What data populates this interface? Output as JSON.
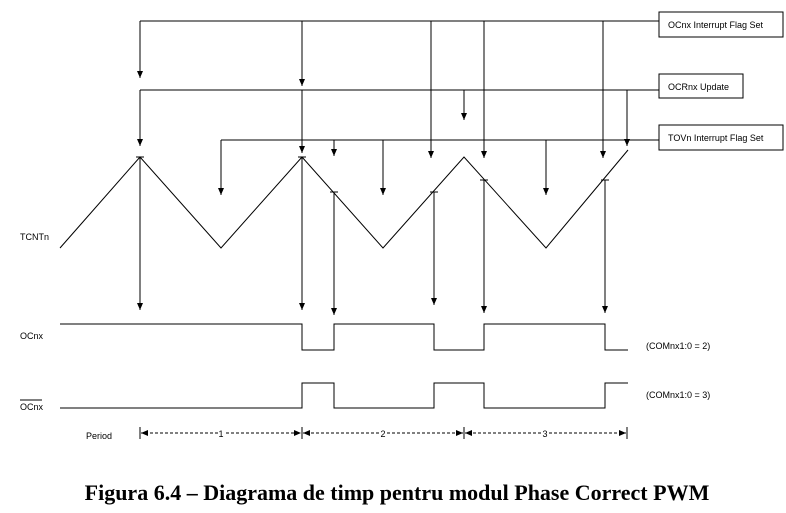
{
  "labels": {
    "ocnx_flag": "OCnx Interrupt Flag Set",
    "ocrnx_update": "OCRnx Update",
    "tovn_flag": "TOVn Interrupt Flag Set",
    "tcntn": "TCNTn",
    "ocnx": "OCnx",
    "ocnx_inv": "OCnx",
    "com2": "(COMnx1:0 = 2)",
    "com3": "(COMnx1:0 = 3)",
    "period": "Period",
    "periods": [
      "1",
      "2",
      "3"
    ]
  },
  "caption": "Figura 6.4 – Diagrama de timp pentru modul Phase Correct PWM"
}
